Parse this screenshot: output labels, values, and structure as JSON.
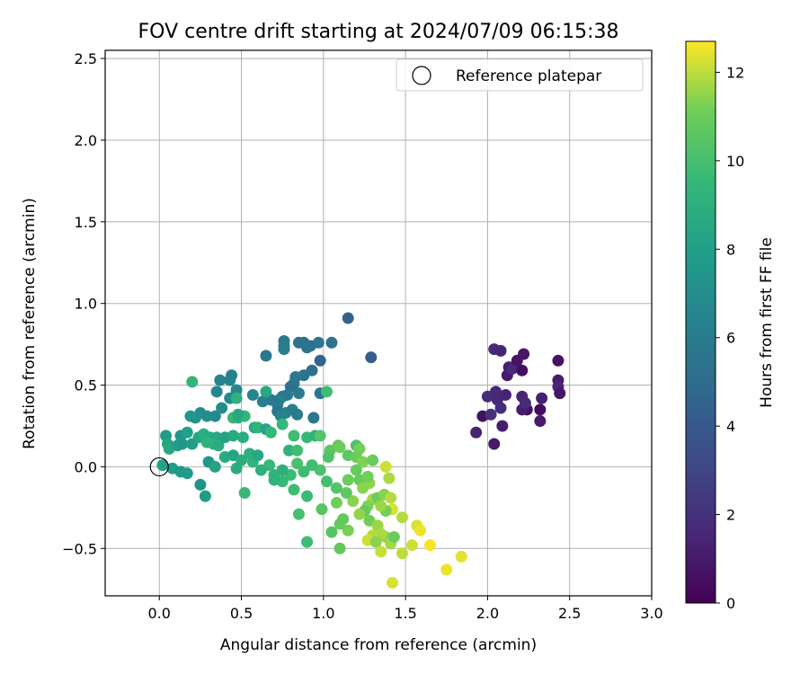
{
  "chart_data": {
    "type": "scatter",
    "title": "FOV centre drift starting at 2024/07/09 06:15:38",
    "xlabel": "Angular distance from reference (arcmin)",
    "ylabel": "Rotation from reference (arcmin)",
    "xlim": [
      -0.33,
      3.0
    ],
    "ylim": [
      -0.79,
      2.55
    ],
    "xticks": [
      0.0,
      0.5,
      1.0,
      1.5,
      2.0,
      2.5,
      3.0
    ],
    "xtick_labels": [
      "0.0",
      "0.5",
      "1.0",
      "1.5",
      "2.0",
      "2.5",
      "3.0"
    ],
    "yticks": [
      -0.5,
      0.0,
      0.5,
      1.0,
      1.5,
      2.0,
      2.5
    ],
    "ytick_labels": [
      "−0.5",
      "0.0",
      "0.5",
      "1.0",
      "1.5",
      "2.0",
      "2.5"
    ],
    "grid": true,
    "legend": {
      "position": "top-right",
      "entries": [
        "Reference platepar"
      ]
    },
    "reference_point": {
      "x": 0.0,
      "y": 0.0
    },
    "colorbar": {
      "label": "Hours from first FF file",
      "range": [
        0,
        12.7
      ],
      "ticks": [
        0,
        2,
        4,
        6,
        8,
        10,
        12
      ],
      "tick_labels": [
        "0",
        "2",
        "4",
        "6",
        "8",
        "10",
        "12"
      ],
      "colormap": "viridis"
    },
    "points": [
      {
        "x": 2.04,
        "y": 0.14,
        "c": 1.0
      },
      {
        "x": 1.97,
        "y": 0.31,
        "c": 0.6
      },
      {
        "x": 1.93,
        "y": 0.21,
        "c": 1.4
      },
      {
        "x": 2.0,
        "y": 0.43,
        "c": 1.8
      },
      {
        "x": 2.02,
        "y": 0.32,
        "c": 2.0
      },
      {
        "x": 2.06,
        "y": 0.41,
        "c": 1.6
      },
      {
        "x": 2.04,
        "y": 0.72,
        "c": 1.6
      },
      {
        "x": 2.08,
        "y": 0.71,
        "c": 1.5
      },
      {
        "x": 2.12,
        "y": 0.56,
        "c": 1.0
      },
      {
        "x": 2.13,
        "y": 0.61,
        "c": 1.2
      },
      {
        "x": 2.15,
        "y": 0.6,
        "c": 1.7
      },
      {
        "x": 2.18,
        "y": 0.65,
        "c": 0.8
      },
      {
        "x": 2.21,
        "y": 0.59,
        "c": 0.5
      },
      {
        "x": 2.22,
        "y": 0.69,
        "c": 0.9
      },
      {
        "x": 2.21,
        "y": 0.43,
        "c": 1.5
      },
      {
        "x": 2.24,
        "y": 0.35,
        "c": 0.6
      },
      {
        "x": 2.21,
        "y": 0.35,
        "c": 1.2
      },
      {
        "x": 2.23,
        "y": 0.39,
        "c": 1.8
      },
      {
        "x": 2.11,
        "y": 0.44,
        "c": 1.4
      },
      {
        "x": 2.05,
        "y": 0.46,
        "c": 1.6
      },
      {
        "x": 2.08,
        "y": 0.36,
        "c": 1.9
      },
      {
        "x": 2.09,
        "y": 0.25,
        "c": 1.2
      },
      {
        "x": 2.32,
        "y": 0.35,
        "c": 0.4
      },
      {
        "x": 2.33,
        "y": 0.42,
        "c": 1.3
      },
      {
        "x": 2.32,
        "y": 0.28,
        "c": 1.0
      },
      {
        "x": 2.43,
        "y": 0.65,
        "c": 0.7
      },
      {
        "x": 2.43,
        "y": 0.53,
        "c": 1.1
      },
      {
        "x": 2.43,
        "y": 0.49,
        "c": 1.5
      },
      {
        "x": 2.44,
        "y": 0.45,
        "c": 0.9
      },
      {
        "x": 1.15,
        "y": 0.91,
        "c": 4.5
      },
      {
        "x": 1.29,
        "y": 0.67,
        "c": 4.2
      },
      {
        "x": 0.98,
        "y": 0.65,
        "c": 4.6
      },
      {
        "x": 1.05,
        "y": 0.76,
        "c": 5.4
      },
      {
        "x": 0.97,
        "y": 0.76,
        "c": 5.6
      },
      {
        "x": 0.92,
        "y": 0.74,
        "c": 5.0
      },
      {
        "x": 0.88,
        "y": 0.76,
        "c": 5.3
      },
      {
        "x": 0.85,
        "y": 0.76,
        "c": 5.5
      },
      {
        "x": 0.76,
        "y": 0.77,
        "c": 5.7
      },
      {
        "x": 0.76,
        "y": 0.74,
        "c": 5.9
      },
      {
        "x": 0.76,
        "y": 0.72,
        "c": 6.1
      },
      {
        "x": 0.65,
        "y": 0.68,
        "c": 5.8
      },
      {
        "x": 0.9,
        "y": 0.73,
        "c": 5.6
      },
      {
        "x": 0.93,
        "y": 0.59,
        "c": 5.2
      },
      {
        "x": 0.88,
        "y": 0.56,
        "c": 5.5
      },
      {
        "x": 0.83,
        "y": 0.55,
        "c": 5.8
      },
      {
        "x": 0.82,
        "y": 0.51,
        "c": 5.7
      },
      {
        "x": 0.8,
        "y": 0.49,
        "c": 5.3
      },
      {
        "x": 0.85,
        "y": 0.45,
        "c": 5.9
      },
      {
        "x": 0.78,
        "y": 0.44,
        "c": 6.0
      },
      {
        "x": 0.75,
        "y": 0.43,
        "c": 5.6
      },
      {
        "x": 0.73,
        "y": 0.41,
        "c": 6.2
      },
      {
        "x": 0.72,
        "y": 0.38,
        "c": 6.0
      },
      {
        "x": 0.68,
        "y": 0.41,
        "c": 5.8
      },
      {
        "x": 0.63,
        "y": 0.4,
        "c": 6.1
      },
      {
        "x": 0.72,
        "y": 0.34,
        "c": 5.5
      },
      {
        "x": 0.77,
        "y": 0.33,
        "c": 6.3
      },
      {
        "x": 0.81,
        "y": 0.35,
        "c": 6.1
      },
      {
        "x": 0.84,
        "y": 0.32,
        "c": 5.9
      },
      {
        "x": 0.74,
        "y": 0.31,
        "c": 6.4
      },
      {
        "x": 0.94,
        "y": 0.3,
        "c": 5.7
      },
      {
        "x": 0.98,
        "y": 0.45,
        "c": 5.6
      },
      {
        "x": 1.02,
        "y": 0.46,
        "c": 9.8
      },
      {
        "x": 0.57,
        "y": 0.44,
        "c": 6.5
      },
      {
        "x": 0.47,
        "y": 0.47,
        "c": 6.6
      },
      {
        "x": 0.43,
        "y": 0.53,
        "c": 6.4
      },
      {
        "x": 0.37,
        "y": 0.53,
        "c": 6.5
      },
      {
        "x": 0.44,
        "y": 0.56,
        "c": 6.3
      },
      {
        "x": 0.43,
        "y": 0.42,
        "c": 6.7
      },
      {
        "x": 0.35,
        "y": 0.46,
        "c": 6.6
      },
      {
        "x": 0.38,
        "y": 0.36,
        "c": 6.9
      },
      {
        "x": 0.34,
        "y": 0.31,
        "c": 6.8
      },
      {
        "x": 0.29,
        "y": 0.31,
        "c": 7.1
      },
      {
        "x": 0.25,
        "y": 0.33,
        "c": 7.0
      },
      {
        "x": 0.22,
        "y": 0.3,
        "c": 7.3
      },
      {
        "x": 0.19,
        "y": 0.31,
        "c": 7.5
      },
      {
        "x": 0.13,
        "y": 0.19,
        "c": 7.4
      },
      {
        "x": 0.17,
        "y": 0.21,
        "c": 8.1
      },
      {
        "x": 0.04,
        "y": 0.19,
        "c": 7.9
      },
      {
        "x": 0.05,
        "y": 0.14,
        "c": 8.4
      },
      {
        "x": 0.06,
        "y": 0.11,
        "c": 8.6
      },
      {
        "x": 0.11,
        "y": 0.13,
        "c": 8.0
      },
      {
        "x": 0.14,
        "y": 0.14,
        "c": 7.6
      },
      {
        "x": 0.2,
        "y": 0.14,
        "c": 7.8
      },
      {
        "x": 0.24,
        "y": 0.18,
        "c": 8.4
      },
      {
        "x": 0.27,
        "y": 0.2,
        "c": 8.9
      },
      {
        "x": 0.31,
        "y": 0.18,
        "c": 8.7
      },
      {
        "x": 0.35,
        "y": 0.18,
        "c": 8.5
      },
      {
        "x": 0.33,
        "y": 0.14,
        "c": 9.0
      },
      {
        "x": 0.29,
        "y": 0.15,
        "c": 9.2
      },
      {
        "x": 0.36,
        "y": 0.13,
        "c": 8.8
      },
      {
        "x": 0.4,
        "y": 0.18,
        "c": 8.2
      },
      {
        "x": 0.45,
        "y": 0.19,
        "c": 8.7
      },
      {
        "x": 0.51,
        "y": 0.18,
        "c": 8.9
      },
      {
        "x": 0.45,
        "y": 0.3,
        "c": 9.6
      },
      {
        "x": 0.48,
        "y": 0.3,
        "c": 9.0
      },
      {
        "x": 0.52,
        "y": 0.31,
        "c": 9.4
      },
      {
        "x": 0.58,
        "y": 0.24,
        "c": 8.6
      },
      {
        "x": 0.6,
        "y": 0.24,
        "c": 9.3
      },
      {
        "x": 0.65,
        "y": 0.23,
        "c": 8.3
      },
      {
        "x": 0.68,
        "y": 0.21,
        "c": 9.5
      },
      {
        "x": 0.65,
        "y": 0.46,
        "c": 8.6
      },
      {
        "x": 0.2,
        "y": 0.52,
        "c": 9.4
      },
      {
        "x": 0.47,
        "y": 0.42,
        "c": 9.1
      },
      {
        "x": 0.48,
        "y": 0.32,
        "c": 8.5
      },
      {
        "x": 0.75,
        "y": 0.26,
        "c": 9.5
      },
      {
        "x": 0.82,
        "y": 0.19,
        "c": 9.8
      },
      {
        "x": 0.79,
        "y": 0.1,
        "c": 9.2
      },
      {
        "x": 0.84,
        "y": 0.1,
        "c": 9.9
      },
      {
        "x": 0.9,
        "y": 0.18,
        "c": 9.6
      },
      {
        "x": 0.95,
        "y": 0.19,
        "c": 9.2
      },
      {
        "x": 0.98,
        "y": 0.19,
        "c": 10.4
      },
      {
        "x": 1.04,
        "y": 0.1,
        "c": 10.6
      },
      {
        "x": 1.03,
        "y": 0.06,
        "c": 10.3
      },
      {
        "x": 1.09,
        "y": 0.13,
        "c": 10.8
      },
      {
        "x": 1.1,
        "y": 0.12,
        "c": 11.0
      },
      {
        "x": 1.2,
        "y": 0.13,
        "c": 10.2
      },
      {
        "x": 1.22,
        "y": 0.11,
        "c": 11.2
      },
      {
        "x": 1.15,
        "y": 0.07,
        "c": 10.6
      },
      {
        "x": 1.2,
        "y": 0.06,
        "c": 11.0
      },
      {
        "x": 1.24,
        "y": 0.03,
        "c": 11.3
      },
      {
        "x": 1.3,
        "y": 0.04,
        "c": 11.0
      },
      {
        "x": 1.38,
        "y": 0.0,
        "c": 12.2
      },
      {
        "x": 1.4,
        "y": -0.07,
        "c": 11.8
      },
      {
        "x": 1.28,
        "y": -0.1,
        "c": 11.5
      },
      {
        "x": 1.22,
        "y": -0.08,
        "c": 10.9
      },
      {
        "x": 1.24,
        "y": -0.13,
        "c": 11.4
      },
      {
        "x": 1.3,
        "y": -0.2,
        "c": 11.7
      },
      {
        "x": 1.33,
        "y": -0.19,
        "c": 11.0
      },
      {
        "x": 1.37,
        "y": -0.17,
        "c": 11.4
      },
      {
        "x": 1.41,
        "y": -0.19,
        "c": 11.9
      },
      {
        "x": 1.42,
        "y": -0.26,
        "c": 12.3
      },
      {
        "x": 1.38,
        "y": -0.27,
        "c": 11.2
      },
      {
        "x": 1.35,
        "y": -0.24,
        "c": 11.6
      },
      {
        "x": 1.27,
        "y": -0.24,
        "c": 11.3
      },
      {
        "x": 1.25,
        "y": -0.27,
        "c": 10.8
      },
      {
        "x": 1.22,
        "y": -0.29,
        "c": 11.5
      },
      {
        "x": 1.28,
        "y": -0.33,
        "c": 11.1
      },
      {
        "x": 1.33,
        "y": -0.36,
        "c": 11.6
      },
      {
        "x": 1.38,
        "y": -0.43,
        "c": 11.5
      },
      {
        "x": 1.35,
        "y": -0.41,
        "c": 11.8
      },
      {
        "x": 1.3,
        "y": -0.42,
        "c": 11.9
      },
      {
        "x": 1.27,
        "y": -0.45,
        "c": 12.2
      },
      {
        "x": 1.32,
        "y": -0.46,
        "c": 11.4
      },
      {
        "x": 1.35,
        "y": -0.52,
        "c": 12.1
      },
      {
        "x": 1.41,
        "y": -0.47,
        "c": 11.7
      },
      {
        "x": 1.43,
        "y": -0.43,
        "c": 11.0
      },
      {
        "x": 1.48,
        "y": -0.53,
        "c": 12.0
      },
      {
        "x": 1.48,
        "y": -0.31,
        "c": 11.9
      },
      {
        "x": 1.54,
        "y": -0.48,
        "c": 12.2
      },
      {
        "x": 1.57,
        "y": -0.36,
        "c": 12.3
      },
      {
        "x": 1.59,
        "y": -0.39,
        "c": 12.5
      },
      {
        "x": 1.65,
        "y": -0.48,
        "c": 12.6
      },
      {
        "x": 1.75,
        "y": -0.63,
        "c": 12.5
      },
      {
        "x": 1.84,
        "y": -0.55,
        "c": 12.4
      },
      {
        "x": 1.42,
        "y": -0.71,
        "c": 12.3
      },
      {
        "x": 1.15,
        "y": -0.39,
        "c": 11.2
      },
      {
        "x": 1.1,
        "y": -0.35,
        "c": 10.9
      },
      {
        "x": 1.05,
        "y": -0.4,
        "c": 10.5
      },
      {
        "x": 1.12,
        "y": -0.32,
        "c": 10.8
      },
      {
        "x": 1.08,
        "y": -0.22,
        "c": 11.1
      },
      {
        "x": 1.18,
        "y": -0.21,
        "c": 11.4
      },
      {
        "x": 1.14,
        "y": -0.16,
        "c": 10.7
      },
      {
        "x": 1.08,
        "y": -0.13,
        "c": 10.4
      },
      {
        "x": 1.02,
        "y": -0.09,
        "c": 10.0
      },
      {
        "x": 0.98,
        "y": -0.02,
        "c": 10.2
      },
      {
        "x": 0.93,
        "y": 0.01,
        "c": 9.9
      },
      {
        "x": 0.88,
        "y": -0.03,
        "c": 9.8
      },
      {
        "x": 0.84,
        "y": 0.02,
        "c": 10.1
      },
      {
        "x": 0.8,
        "y": -0.05,
        "c": 9.7
      },
      {
        "x": 0.75,
        "y": -0.09,
        "c": 9.5
      },
      {
        "x": 0.7,
        "y": -0.05,
        "c": 9.3
      },
      {
        "x": 0.67,
        "y": 0.01,
        "c": 9.6
      },
      {
        "x": 0.62,
        "y": -0.02,
        "c": 9.1
      },
      {
        "x": 0.57,
        "y": 0.03,
        "c": 9.4
      },
      {
        "x": 0.52,
        "y": -0.16,
        "c": 9.6
      },
      {
        "x": 0.82,
        "y": -0.14,
        "c": 9.8
      },
      {
        "x": 0.85,
        "y": -0.29,
        "c": 10.0
      },
      {
        "x": 0.9,
        "y": -0.18,
        "c": 9.7
      },
      {
        "x": 0.9,
        "y": -0.46,
        "c": 9.8
      },
      {
        "x": 0.99,
        "y": -0.26,
        "c": 10.5
      },
      {
        "x": 1.1,
        "y": -0.5,
        "c": 10.8
      },
      {
        "x": 1.27,
        "y": -0.06,
        "c": 11.1
      },
      {
        "x": 1.2,
        "y": -0.02,
        "c": 10.9
      },
      {
        "x": 1.15,
        "y": -0.08,
        "c": 11.0
      },
      {
        "x": 0.02,
        "y": 0.01,
        "c": 8.2
      },
      {
        "x": 0.08,
        "y": -0.01,
        "c": 8.0
      },
      {
        "x": 0.13,
        "y": -0.03,
        "c": 7.6
      },
      {
        "x": 0.17,
        "y": -0.04,
        "c": 7.8
      },
      {
        "x": 0.25,
        "y": -0.11,
        "c": 7.3
      },
      {
        "x": 0.28,
        "y": -0.18,
        "c": 7.9
      },
      {
        "x": 0.3,
        "y": 0.03,
        "c": 7.5
      },
      {
        "x": 0.34,
        "y": 0.0,
        "c": 8.3
      },
      {
        "x": 0.4,
        "y": 0.06,
        "c": 8.7
      },
      {
        "x": 0.45,
        "y": 0.07,
        "c": 8.4
      },
      {
        "x": 0.5,
        "y": 0.04,
        "c": 8.9
      },
      {
        "x": 0.55,
        "y": 0.08,
        "c": 9.0
      },
      {
        "x": 0.6,
        "y": 0.07,
        "c": 8.6
      },
      {
        "x": 0.47,
        "y": -0.01,
        "c": 8.8
      },
      {
        "x": 0.7,
        "y": -0.08,
        "c": 9.2
      },
      {
        "x": 0.75,
        "y": -0.02,
        "c": 9.0
      }
    ]
  }
}
